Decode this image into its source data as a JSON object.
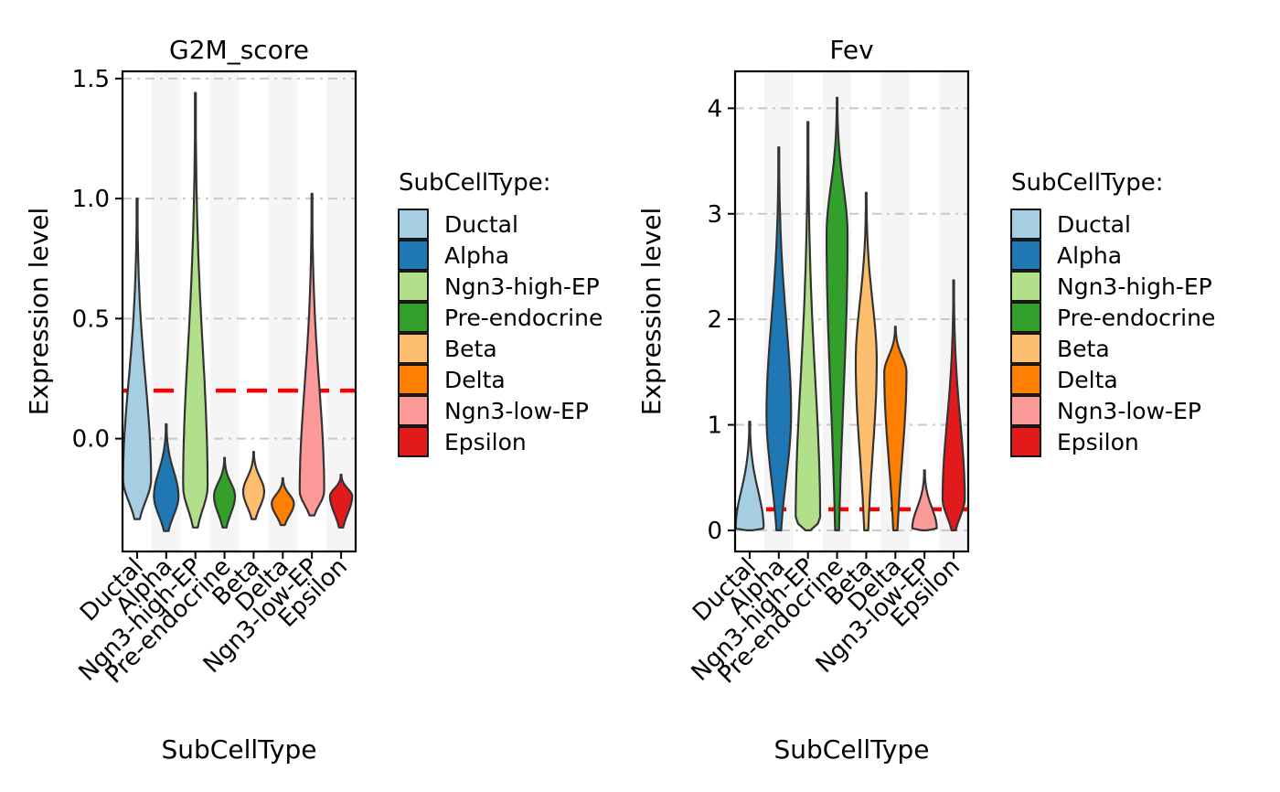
{
  "colors": {
    "Ductal": "#A6CEE3",
    "Alpha": "#1F78B4",
    "Ngn3-high-EP": "#B2DF8A",
    "Pre-endocrine": "#33A02C",
    "Beta": "#FDBF6F",
    "Delta": "#FF7F00",
    "Ngn3-low-EP": "#FB9A99",
    "Epsilon": "#E31A1C",
    "threshold_line": "#FF0000",
    "stripe": "#F5F5F5",
    "grid": "#C8C8C8",
    "outline": "#333333"
  },
  "chart_data": [
    {
      "type": "violin",
      "title": "G2M_score",
      "xlabel": "SubCellType",
      "ylabel": "Expression level",
      "categories": [
        "Ductal",
        "Alpha",
        "Ngn3-high-EP",
        "Pre-endocrine",
        "Beta",
        "Delta",
        "Ngn3-low-EP",
        "Epsilon"
      ],
      "yticks": [
        "0.0",
        "0.5",
        "1.0",
        "1.5"
      ],
      "ylim": [
        -0.47,
        1.53
      ],
      "threshold": 0.2,
      "grid": "horizontal dashed",
      "violins": [
        {
          "name": "Ductal",
          "min": -0.335,
          "max": 1.0,
          "median": -0.17,
          "mode": -0.17,
          "maxw": 0.48
        },
        {
          "name": "Alpha",
          "min": -0.385,
          "max": 0.06,
          "median": -0.24,
          "mode": -0.24,
          "maxw": 0.42
        },
        {
          "name": "Ngn3-high-EP",
          "min": -0.37,
          "max": 1.44,
          "median": -0.2,
          "mode": -0.2,
          "maxw": 0.42
        },
        {
          "name": "Pre-endocrine",
          "min": -0.37,
          "max": -0.08,
          "median": -0.24,
          "mode": -0.24,
          "maxw": 0.36
        },
        {
          "name": "Beta",
          "min": -0.335,
          "max": -0.055,
          "median": -0.22,
          "mode": -0.22,
          "maxw": 0.36
        },
        {
          "name": "Delta",
          "min": -0.36,
          "max": -0.165,
          "median": -0.27,
          "mode": -0.27,
          "maxw": 0.38
        },
        {
          "name": "Ngn3-low-EP",
          "min": -0.32,
          "max": 1.02,
          "median": -0.19,
          "mode": -0.22,
          "maxw": 0.42
        },
        {
          "name": "Epsilon",
          "min": -0.37,
          "max": -0.15,
          "median": -0.24,
          "mode": -0.24,
          "maxw": 0.38
        }
      ]
    },
    {
      "type": "violin",
      "title": "Fev",
      "xlabel": "SubCellType",
      "ylabel": "Expression level",
      "categories": [
        "Ductal",
        "Alpha",
        "Ngn3-high-EP",
        "Pre-endocrine",
        "Beta",
        "Delta",
        "Ngn3-low-EP",
        "Epsilon"
      ],
      "yticks": [
        "0",
        "1",
        "2",
        "3",
        "4"
      ],
      "ylim": [
        -0.2,
        4.35
      ],
      "threshold": 0.2,
      "grid": "horizontal dashed",
      "violins": [
        {
          "name": "Ductal",
          "min": 0,
          "max": 1.03,
          "median": 0.02,
          "mode": 0.02,
          "maxw": 0.48
        },
        {
          "name": "Alpha",
          "min": 0,
          "max": 3.63,
          "median": 1.1,
          "mode": 1.1,
          "maxw": 0.42
        },
        {
          "name": "Ngn3-high-EP",
          "min": 0,
          "max": 3.87,
          "median": 0.1,
          "mode": 0.1,
          "maxw": 0.42
        },
        {
          "name": "Pre-endocrine",
          "min": 0,
          "max": 4.1,
          "median": 2.8,
          "mode": 2.8,
          "maxw": 0.36
        },
        {
          "name": "Beta",
          "min": 0,
          "max": 3.2,
          "median": 1.4,
          "mode": 1.6,
          "maxw": 0.36
        },
        {
          "name": "Delta",
          "min": 0,
          "max": 1.93,
          "median": 1.2,
          "mode": 1.5,
          "maxw": 0.38
        },
        {
          "name": "Ngn3-low-EP",
          "min": 0,
          "max": 0.57,
          "median": 0.02,
          "mode": 0.02,
          "maxw": 0.42
        },
        {
          "name": "Epsilon",
          "min": 0,
          "max": 2.37,
          "median": 0.3,
          "mode": 0.3,
          "maxw": 0.38
        }
      ]
    }
  ],
  "legend": {
    "title": "SubCellType:",
    "items": [
      "Ductal",
      "Alpha",
      "Ngn3-high-EP",
      "Pre-endocrine",
      "Beta",
      "Delta",
      "Ngn3-low-EP",
      "Epsilon"
    ]
  }
}
